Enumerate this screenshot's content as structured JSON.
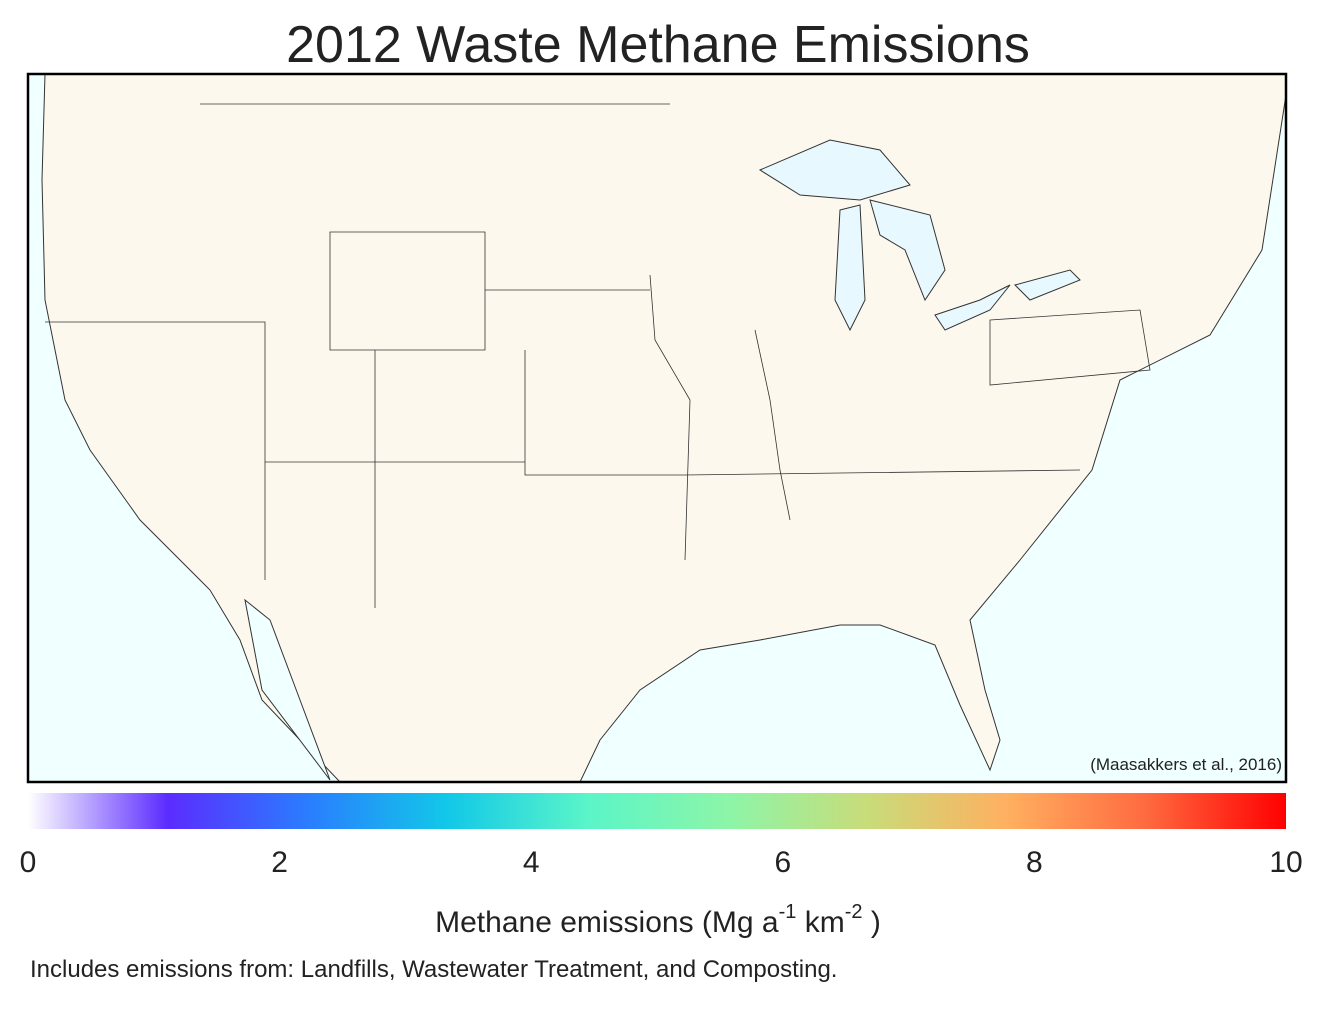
{
  "title": "2012 Waste Methane Emissions",
  "citation": "(Maasakkers et al., 2016)",
  "colorbar": {
    "lim": [
      0,
      10
    ],
    "ticks": [
      0,
      2,
      4,
      6,
      8,
      10
    ],
    "colors": [
      "#ffffff",
      "#5b2cff",
      "#2a7dff",
      "#12c8e8",
      "#5af5c8",
      "#8cf5a8",
      "#c8dc7a",
      "#ffb060",
      "#ff6a40",
      "#ff0000"
    ],
    "label": [
      "Methane emissions (Mg a",
      "-1",
      " km",
      "-2",
      " )"
    ]
  },
  "footnote": "Includes emissions from: Landfills, Wastewater Treatment, and Composting."
}
